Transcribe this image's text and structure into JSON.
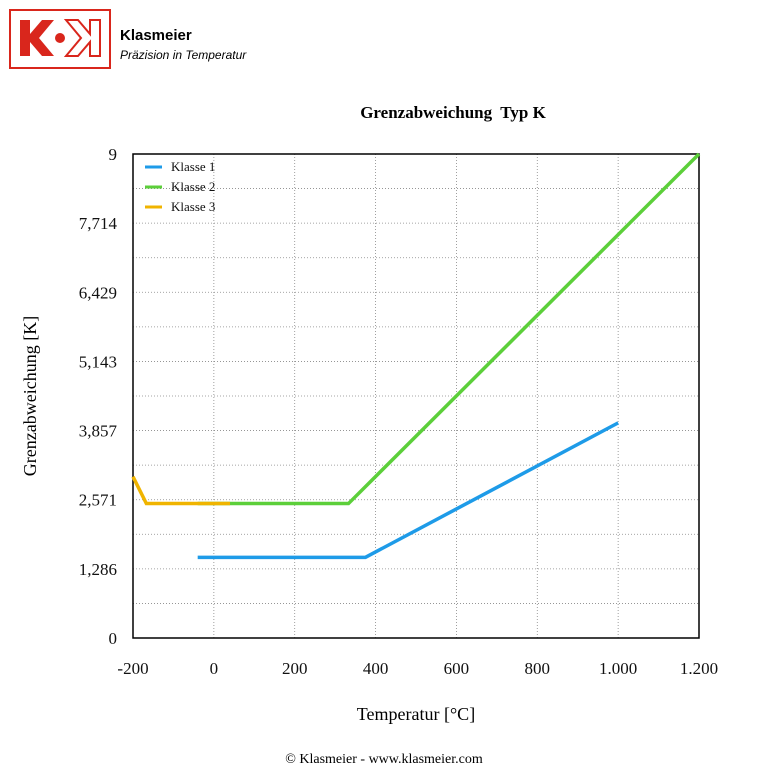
{
  "header": {
    "company": "Klasmeier",
    "slogan": "Präzision in Temperatur"
  },
  "footer": "© Klasmeier - www.klasmeier.com",
  "chart_data": {
    "type": "line",
    "title": "Grenzabweichung  Typ K",
    "xlabel": "Temperatur [°C]",
    "ylabel": "Grenzabweichung [K]",
    "series": [
      {
        "name": "Klasse 1",
        "color": "#1e9be8",
        "x": [
          -40,
          375,
          1000
        ],
        "values": [
          1.5,
          1.5,
          4.0
        ]
      },
      {
        "name": "Klasse 2",
        "color": "#5ccf3a",
        "x": [
          -40,
          333,
          1200
        ],
        "values": [
          2.5,
          2.5,
          9.0
        ]
      },
      {
        "name": "Klasse 3",
        "color": "#f0b400",
        "x": [
          -200,
          -167,
          40
        ],
        "values": [
          3.0,
          2.5,
          2.5
        ]
      }
    ],
    "xlim": [
      -200,
      1200
    ],
    "xticks": [
      -200,
      0,
      200,
      400,
      600,
      800,
      {
        "value": 1000,
        "label": "1.000"
      },
      {
        "value": 1200,
        "label": "1.200"
      }
    ],
    "ylim": [
      0,
      9
    ],
    "yticks": [
      0,
      {
        "value": 1.286,
        "label": "1,286"
      },
      {
        "value": 2.571,
        "label": "2,571"
      },
      {
        "value": 3.857,
        "label": "3,857"
      },
      {
        "value": 5.143,
        "label": "5,143"
      },
      {
        "value": 6.429,
        "label": "6,429"
      },
      {
        "value": 7.714,
        "label": "7,714"
      },
      9
    ],
    "yminorticks": [
      0.643,
      1.929,
      3.214,
      4.5,
      5.786,
      7.071,
      8.357
    ],
    "grid": true,
    "legend": "upper left"
  }
}
